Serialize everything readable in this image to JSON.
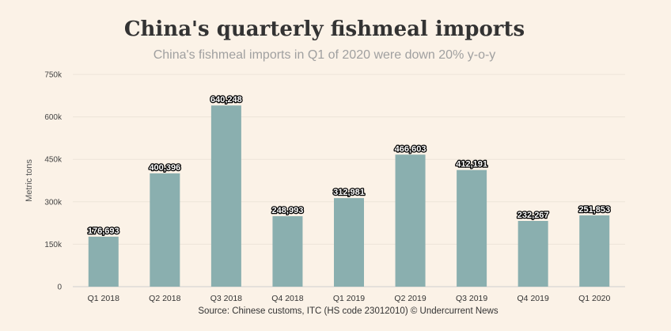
{
  "chart_data": {
    "type": "bar",
    "title": "China's quarterly fishmeal imports",
    "subtitle": "China's fishmeal imports in Q1 of 2020 were down 20% y-o-y",
    "ylabel": "Metric tons",
    "xlabel": "",
    "categories": [
      "Q1 2018",
      "Q2 2018",
      "Q3 2018",
      "Q4 2018",
      "Q1 2019",
      "Q2 2019",
      "Q3 2019",
      "Q4 2019",
      "Q1 2020"
    ],
    "values": [
      176693,
      400396,
      640248,
      248993,
      312981,
      466603,
      412191,
      232267,
      251853
    ],
    "value_labels": [
      "176,693",
      "400,396",
      "640,248",
      "248,993",
      "312,981",
      "466,603",
      "412,191",
      "232,267",
      "251,853"
    ],
    "ylim": [
      0,
      750000
    ],
    "yticks": [
      0,
      150000,
      300000,
      450000,
      600000,
      750000
    ],
    "ytick_labels": [
      "0",
      "150k",
      "300k",
      "450k",
      "600k",
      "750k"
    ],
    "grid": true,
    "legend": "none",
    "bar_color": "#8aafaf",
    "source": "Source: Chinese customs, ITC (HS code 23012010) © Undercurrent News"
  }
}
